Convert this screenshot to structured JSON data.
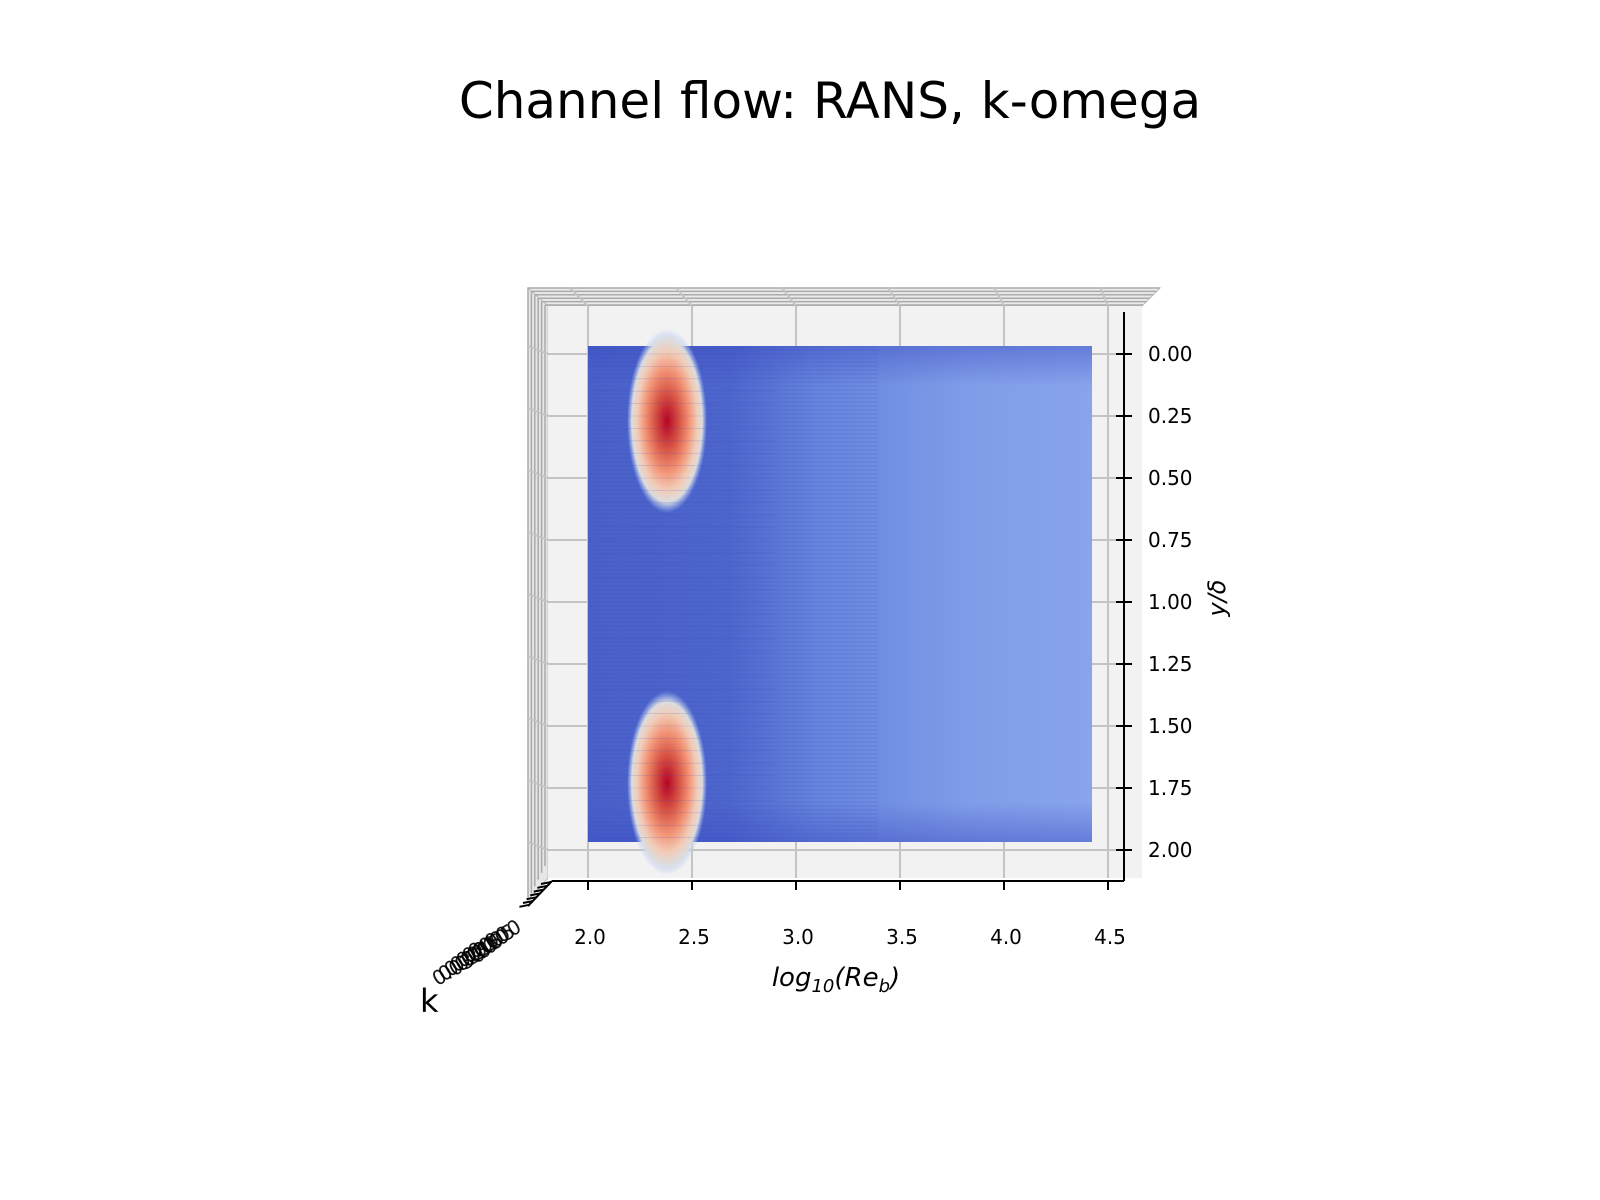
{
  "chart_data": {
    "type": "surface-3d",
    "title": "Channel flow: RANS, k-omega",
    "xlabel": "log10(Re_b)",
    "ylabel": "y/δ",
    "zlabel": "k",
    "x_ticks": [
      "2.0",
      "2.5",
      "3.0",
      "3.5",
      "4.0",
      "4.5"
    ],
    "y_ticks": [
      "0.00",
      "0.25",
      "0.50",
      "0.75",
      "1.00",
      "1.25",
      "1.50",
      "1.75",
      "2.00"
    ],
    "z_ticks": [
      "0.000",
      "0.005",
      "0.010",
      "0.015",
      "0.020",
      "0.025",
      "0.030"
    ],
    "xlim": [
      2.0,
      4.45
    ],
    "ylim": [
      0.0,
      2.0
    ],
    "colormap": "coolwarm",
    "view": "top-down",
    "surface_extent": {
      "x": [
        2.0,
        4.45
      ],
      "y": [
        0.0,
        2.0
      ]
    },
    "peaks": [
      {
        "x": 2.38,
        "y": 0.27,
        "k": 0.03
      },
      {
        "x": 2.38,
        "y": 1.73,
        "k": 0.03
      }
    ],
    "background_k": 0.002,
    "grid": true
  }
}
